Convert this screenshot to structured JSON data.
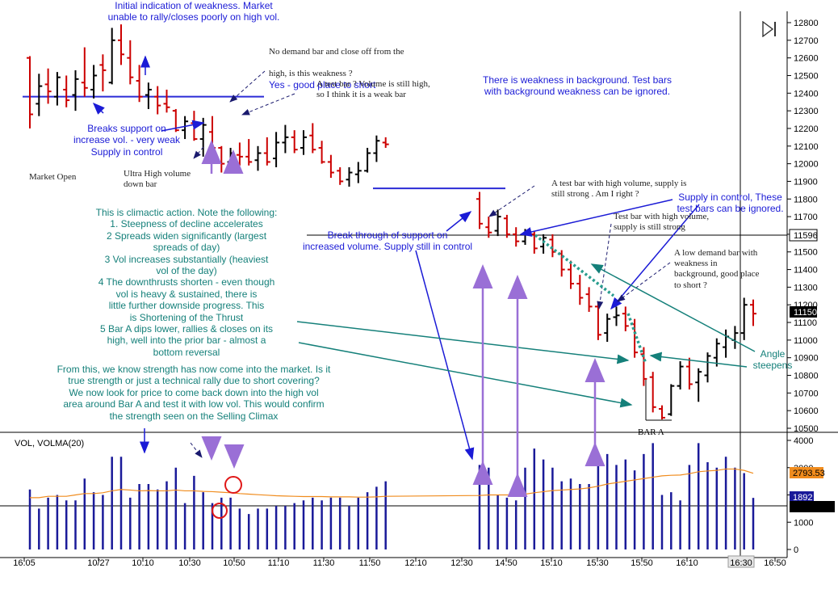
{
  "title": "",
  "indicator_label": "VOL, VOLMA(20)",
  "icons": {
    "play": "play-to-end-icon"
  },
  "colors": {
    "up_bar": "#000000",
    "down_bar": "#cc0000",
    "volume_bar": "#1a1a99",
    "volma_line": "#f08c1e",
    "annotation_blue": "#1b1bd6",
    "annotation_teal": "#15807a",
    "arrow_purple": "#9a6fd6",
    "support_line": "#2b2bd6"
  },
  "price_axis": {
    "ticks": [
      "12800",
      "12700",
      "12600",
      "12500",
      "12400",
      "12300",
      "12200",
      "12100",
      "12000",
      "11900",
      "11800",
      "11700",
      "11600",
      "11500",
      "11400",
      "11300",
      "11200",
      "11100",
      "11000",
      "10900",
      "10800",
      "10700",
      "10600",
      "10500"
    ]
  },
  "price_markers": {
    "level_596": "11596",
    "last_price": "11150"
  },
  "volume_axis": {
    "ticks": [
      "4000",
      "3000",
      "2000",
      "1000",
      "0"
    ],
    "volma_value": "2793.53",
    "last_volume": "1892"
  },
  "time_axis": {
    "labels": [
      "16:05",
      "10/27",
      "10:10",
      "10:30",
      "10:50",
      "11:10",
      "11:30",
      "11:50",
      "12:10",
      "12:30",
      "14:50",
      "15:10",
      "15:30",
      "15:50",
      "16:10",
      "16:30",
      "16:50"
    ],
    "highlighted": "16:30"
  },
  "annotations": {
    "initial_weakness": "Initial indication of weakness.  Market\nunable to rally/closes poorly on high vol.",
    "no_demand_line1": "No demand bar and close off from the",
    "no_demand_line2": "high, is this weakness ?",
    "no_demand_answer": "Yes - good place to short",
    "test_bar_weak": "A test bar ? Volume is still high,\nso I think it is a weak bar",
    "background_weakness": "There is weakness in background.  Test bars\nwith background weakness can be ignored.",
    "breaks_support": "Breaks support on\nincrease vol. - very weak\nSupply in control",
    "market_open": "Market Open",
    "ultra_high": "Ultra High volume\ndown bar",
    "test_high_vol_1": "A test bar with high volume, supply is\nstill strong . Am I right ?",
    "supply_control_test": "Supply in control,  These\ntest bars can be ignored.",
    "test_high_vol_2": "Test bar with high volume,\nsupply is still strong",
    "break_through": "Break through of support on\nincreased volume.  Supply still in control",
    "low_demand": "A low demand bar with\nweakness in\nbackground, good place\nto short ?",
    "climactic": "This is climactic action.  Note the following:\n1. Steepness of decline accelerates\n2 Spreads widen significantly (largest\nspreads of day)\n3 Vol increases substantially (heaviest\nvol of the day)\n4 The downthrusts shorten - even though\nvol is heavy & sustained, there is\nlittle further downside progress.  This\nis Shortening of the Thrust\n5 Bar A dips lower, rallies & closes on its\nhigh, well into the prior bar - almost a\nbottom reversal",
    "strength": "From this, we know strength has now come into the market.  Is it\ntrue strength or just a technical rally due to short covering?\nWe now look for price to come back down into the high vol\narea around Bar A and test it with low vol.  This would confirm\nthe strength seen on the Selling Climax",
    "angle": "Angle\nsteepens",
    "bar_a": "BAR A"
  },
  "chart_data": {
    "type": "bar",
    "description_type": "ohlc-with-volume",
    "time_labels_shown": [
      "16:05",
      "10/27",
      "10:10",
      "10:30",
      "10:50",
      "11:10",
      "11:30",
      "11:50",
      "12:10",
      "12:30",
      "14:50",
      "15:10",
      "15:30",
      "15:50",
      "16:10",
      "16:30",
      "16:50"
    ],
    "price_ylim": [
      10480,
      12860
    ],
    "volume_ylim": [
      0,
      4500
    ],
    "grid": false,
    "ohlc": [
      [
        12600,
        12610,
        12200,
        12280
      ],
      [
        12340,
        12510,
        12270,
        12440
      ],
      [
        12450,
        12540,
        12340,
        12410
      ],
      [
        12380,
        12520,
        12330,
        12490
      ],
      [
        12420,
        12500,
        12320,
        12360
      ],
      [
        12390,
        12530,
        12300,
        12480
      ],
      [
        12460,
        12660,
        12380,
        12430
      ],
      [
        12420,
        12560,
        12370,
        12500
      ],
      [
        12560,
        12620,
        12410,
        12530
      ],
      [
        12460,
        12770,
        12450,
        12700
      ],
      [
        12700,
        12790,
        12560,
        12620
      ],
      [
        12600,
        12700,
        12450,
        12490
      ],
      [
        12470,
        12560,
        12350,
        12380
      ],
      [
        12390,
        12460,
        12310,
        12420
      ],
      [
        12380,
        12440,
        12280,
        12330
      ],
      [
        12340,
        12420,
        12290,
        12320
      ],
      [
        12300,
        12310,
        12180,
        12190
      ],
      [
        12190,
        12270,
        12140,
        12240
      ],
      [
        12230,
        12300,
        12130,
        12140
      ],
      [
        12140,
        12260,
        12040,
        12220
      ],
      [
        12180,
        12270,
        12060,
        12090
      ],
      [
        12090,
        12100,
        11950,
        12000
      ],
      [
        12010,
        12090,
        11960,
        12060
      ],
      [
        12050,
        12120,
        11990,
        12040
      ],
      [
        12040,
        12140,
        11990,
        12010
      ],
      [
        12020,
        12100,
        11960,
        12060
      ],
      [
        12060,
        12150,
        11990,
        12010
      ],
      [
        12030,
        12180,
        11980,
        12120
      ],
      [
        12120,
        12220,
        12060,
        12150
      ],
      [
        12150,
        12190,
        12060,
        12080
      ],
      [
        12090,
        12190,
        12050,
        12150
      ],
      [
        12160,
        12230,
        12060,
        12080
      ],
      [
        12090,
        12130,
        12000,
        12010
      ],
      [
        12010,
        12050,
        11920,
        11950
      ],
      [
        11960,
        11980,
        11880,
        11900
      ],
      [
        11910,
        11980,
        11870,
        11950
      ],
      [
        11940,
        12010,
        11890,
        11960
      ],
      [
        11960,
        12090,
        11950,
        12060
      ],
      [
        12060,
        12160,
        12010,
        12130
      ],
      [
        12120,
        12150,
        12090,
        12110
      ],
      [
        11800,
        11840,
        11630,
        11660
      ],
      [
        11640,
        11700,
        11580,
        11610
      ],
      [
        11620,
        11740,
        11590,
        11700
      ],
      [
        11690,
        11710,
        11580,
        11600
      ],
      [
        11600,
        11640,
        11530,
        11560
      ],
      [
        11560,
        11630,
        11540,
        11610
      ],
      [
        11600,
        11620,
        11490,
        11520
      ],
      [
        11530,
        11600,
        11490,
        11580
      ],
      [
        11570,
        11600,
        11470,
        11500
      ],
      [
        11490,
        11510,
        11360,
        11400
      ],
      [
        11400,
        11450,
        11290,
        11320
      ],
      [
        11320,
        11370,
        11200,
        11240
      ],
      [
        11260,
        11300,
        11160,
        11190
      ],
      [
        11190,
        11220,
        11000,
        11030
      ],
      [
        11040,
        11150,
        10990,
        11120
      ],
      [
        11130,
        11190,
        11080,
        11140
      ],
      [
        11150,
        11190,
        11050,
        11080
      ],
      [
        11090,
        11120,
        10900,
        10930
      ],
      [
        10920,
        10960,
        10740,
        10780
      ],
      [
        10790,
        10820,
        10590,
        10620
      ],
      [
        10610,
        10630,
        10550,
        10560
      ],
      [
        10580,
        10750,
        10570,
        10740
      ],
      [
        10740,
        10880,
        10720,
        10850
      ],
      [
        10850,
        10900,
        10720,
        10750
      ],
      [
        10760,
        10840,
        10650,
        10820
      ],
      [
        10800,
        10930,
        10760,
        10910
      ],
      [
        10900,
        11010,
        10850,
        10980
      ],
      [
        10960,
        11060,
        10900,
        11020
      ],
      [
        11000,
        11080,
        10950,
        11040
      ],
      [
        11040,
        11240,
        11000,
        11200
      ],
      [
        11200,
        11230,
        11080,
        11150
      ]
    ],
    "volume": [
      2200,
      1500,
      1900,
      2000,
      1800,
      1800,
      2600,
      2100,
      2000,
      3400,
      3400,
      1900,
      2400,
      2400,
      2200,
      2500,
      3000,
      1700,
      2700,
      2100,
      1700,
      1900,
      1900,
      1500,
      1300,
      1500,
      1500,
      1600,
      1600,
      1700,
      1800,
      1900,
      1800,
      1900,
      1900,
      1600,
      1900,
      2100,
      2300,
      2500,
      3100,
      3000,
      2000,
      1900,
      1800,
      3000,
      3700,
      3300,
      3000,
      2500,
      2600,
      2400,
      2400,
      3300,
      3500,
      3100,
      3300,
      2900,
      3500,
      3900,
      2000,
      2100,
      1800,
      3100,
      3900,
      3200,
      3000,
      3400,
      3000,
      2800,
      1892
    ],
    "volma": [
      1900,
      1900,
      1950,
      1950,
      1950,
      2000,
      2050,
      2050,
      2080,
      2150,
      2200,
      2180,
      2150,
      2160,
      2150,
      2150,
      2180,
      2150,
      2150,
      2130,
      2120,
      2100,
      2080,
      2050,
      2030,
      2010,
      1990,
      1970,
      1960,
      1950,
      1940,
      1940,
      1940,
      1930,
      1930,
      1930,
      1920,
      1920,
      1930,
      1950,
      1980,
      2000,
      2000,
      2000,
      2000,
      2030,
      2080,
      2120,
      2160,
      2180,
      2200,
      2220,
      2260,
      2320,
      2400,
      2450,
      2500,
      2550,
      2600,
      2650,
      2700,
      2720,
      2730,
      2780,
      2850,
      2880,
      2900,
      2950,
      2950,
      2900,
      2793.53
    ],
    "support_levels": [
      12380,
      11860
    ],
    "gap_after_index": 39
  }
}
